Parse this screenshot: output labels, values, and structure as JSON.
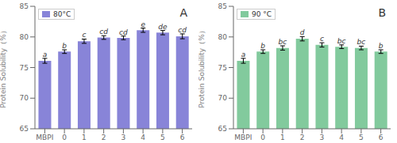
{
  "chart_data": [
    {
      "type": "bar",
      "annotation": "A",
      "categories": [
        "MBPI",
        "0",
        "1",
        "2",
        "3",
        "4",
        "5",
        "6"
      ],
      "series": [
        {
          "name": "80°C",
          "values": [
            76.1,
            77.6,
            79.3,
            79.9,
            79.85,
            81.1,
            80.7,
            80.1
          ],
          "errors": [
            0.4,
            0.3,
            0.35,
            0.3,
            0.3,
            0.35,
            0.35,
            0.4
          ],
          "sig_labels": [
            "a",
            "b",
            "c",
            "cd",
            "cd",
            "e",
            "de",
            "cd"
          ]
        }
      ],
      "ylabel": "Protein Solubility（%）",
      "ylim": [
        65,
        85
      ],
      "yticks": [
        65,
        70,
        75,
        80,
        85
      ],
      "legend": "upper left",
      "grid": false
    },
    {
      "type": "bar",
      "annotation": "B",
      "categories": [
        "MBPI",
        "0",
        "1",
        "2",
        "3",
        "4",
        "5",
        "6"
      ],
      "series": [
        {
          "name": "90 °C",
          "values": [
            76.1,
            77.6,
            78.2,
            79.7,
            78.7,
            78.4,
            78.2,
            77.6
          ],
          "errors": [
            0.4,
            0.3,
            0.35,
            0.35,
            0.35,
            0.3,
            0.3,
            0.3
          ],
          "sig_labels": [
            "a",
            "b",
            "bc",
            "d",
            "c",
            "bc",
            "bc",
            "b"
          ]
        }
      ],
      "ylabel": "Protein Solubility（%）",
      "ylim": [
        65,
        85
      ],
      "yticks": [
        65,
        70,
        75,
        80,
        85
      ],
      "legend": "upper left",
      "grid": false
    }
  ]
}
